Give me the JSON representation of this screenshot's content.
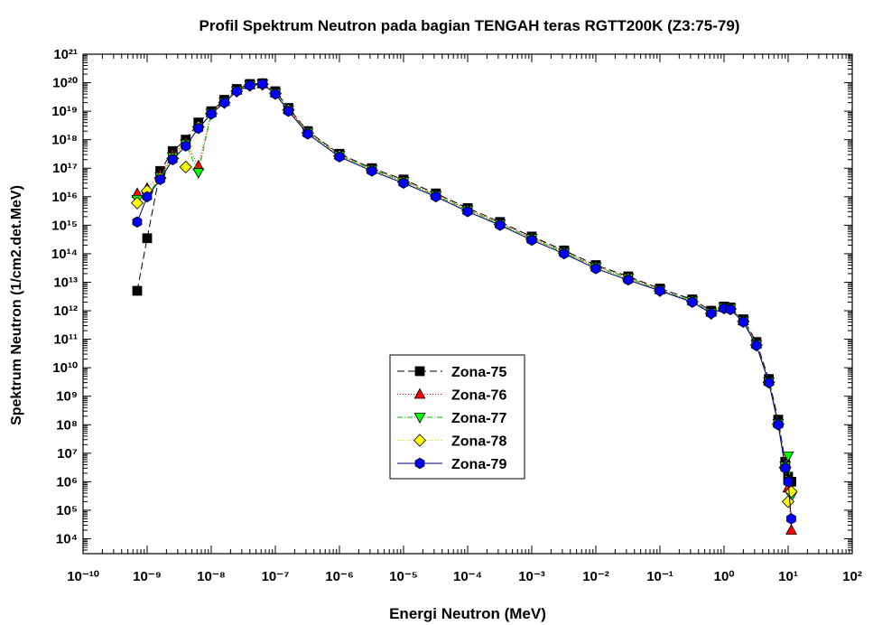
{
  "chart_data": {
    "type": "scatter-line",
    "title": "Profil Spektrum Neutron pada bagian TENGAH teras RGTT200K (Z3:75-79)",
    "x_label": "Energi Neutron (MeV)",
    "y_label": "Spektrum Neutron (1/cm2.det.MeV)",
    "xscale": "log",
    "yscale": "log",
    "xlim": [
      1e-10,
      100
    ],
    "ylim": [
      3000,
      1e+21
    ],
    "xticks": [
      {
        "value": 1e-10,
        "label": "10⁻¹⁰"
      },
      {
        "value": 1e-09,
        "label": "10⁻⁹"
      },
      {
        "value": 1e-08,
        "label": "10⁻⁸"
      },
      {
        "value": 1e-07,
        "label": "10⁻⁷"
      },
      {
        "value": 1e-06,
        "label": "10⁻⁶"
      },
      {
        "value": 1e-05,
        "label": "10⁻⁵"
      },
      {
        "value": 0.0001,
        "label": "10⁻⁴"
      },
      {
        "value": 0.001,
        "label": "10⁻³"
      },
      {
        "value": 0.01,
        "label": "10⁻²"
      },
      {
        "value": 0.1,
        "label": "10⁻¹"
      },
      {
        "value": 1,
        "label": "10⁰"
      },
      {
        "value": 10,
        "label": "10¹"
      },
      {
        "value": 100,
        "label": "10²"
      }
    ],
    "yticks": [
      {
        "value": 10000.0,
        "label": "10⁴"
      },
      {
        "value": 100000.0,
        "label": "10⁵"
      },
      {
        "value": 1000000.0,
        "label": "10⁶"
      },
      {
        "value": 10000000.0,
        "label": "10⁷"
      },
      {
        "value": 100000000.0,
        "label": "10⁸"
      },
      {
        "value": 1000000000.0,
        "label": "10⁹"
      },
      {
        "value": 10000000000.0,
        "label": "10¹⁰"
      },
      {
        "value": 100000000000.0,
        "label": "10¹¹"
      },
      {
        "value": 1000000000000.0,
        "label": "10¹²"
      },
      {
        "value": 10000000000000.0,
        "label": "10¹³"
      },
      {
        "value": 100000000000000.0,
        "label": "10¹⁴"
      },
      {
        "value": 1000000000000000.0,
        "label": "10¹⁵"
      },
      {
        "value": 1e+16,
        "label": "10¹⁶"
      },
      {
        "value": 1e+17,
        "label": "10¹⁷"
      },
      {
        "value": 1e+18,
        "label": "10¹⁸"
      },
      {
        "value": 1e+19,
        "label": "10¹⁹"
      },
      {
        "value": 1e+20,
        "label": "10²⁰"
      },
      {
        "value": 1e+21,
        "label": "10²¹"
      }
    ],
    "legend": "center",
    "x": [
      7e-10,
      1e-09,
      1.6e-09,
      2.5e-09,
      4e-09,
      6.3e-09,
      1e-08,
      1.6e-08,
      2.5e-08,
      4e-08,
      6.3e-08,
      1e-07,
      1.6e-07,
      3.2e-07,
      1e-06,
      3.2e-06,
      1e-05,
      3.2e-05,
      0.0001,
      0.00032,
      0.001,
      0.0032,
      0.01,
      0.032,
      0.1,
      0.32,
      0.63,
      1,
      1.26,
      2,
      3.2,
      5,
      7,
      9,
      10,
      11.2
    ],
    "series": [
      {
        "name": "Zona-75",
        "color": "#000000",
        "line_color": "#000000",
        "dash": "8,4",
        "marker": "square",
        "values": [
          5000000000000.0,
          350000000000000.0,
          8e+16,
          4e+17,
          1e+18,
          4e+18,
          1e+19,
          2.5e+19,
          6e+19,
          9e+19,
          9.5e+19,
          5e+19,
          1.3e+19,
          2e+18,
          3.2e+17,
          1e+17,
          4e+16,
          1.3e+16,
          4000000000000000.0,
          1300000000000000.0,
          400000000000000.0,
          130000000000000.0,
          40000000000000.0,
          16000000000000.0,
          6000000000000.0,
          2500000000000.0,
          1000000000000.0,
          1400000000000.0,
          1300000000000.0,
          500000000000.0,
          80000000000.0,
          4000000000.0,
          150000000.0,
          5000000.0,
          1500000.0,
          1000000.0
        ]
      },
      {
        "name": "Zona-76",
        "color": "#ff0000",
        "line_color": "#ff0000",
        "dash": "1,2",
        "marker": "triangle-up",
        "values": [
          1.3e+16,
          2e+16,
          6e+16,
          3e+17,
          8e+17,
          1.2e+17,
          9e+18,
          2.2e+19,
          5.5e+19,
          8.5e+19,
          9.2e+19,
          4.5e+19,
          1.2e+19,
          1.9e+18,
          3e+17,
          9.5e+16,
          3.6e+16,
          1.2e+16,
          3600000000000000.0,
          1200000000000000.0,
          360000000000000.0,
          120000000000000.0,
          36000000000000.0,
          15000000000000.0,
          5500000000000.0,
          2300000000000.0,
          900000000000.0,
          1300000000000.0,
          1200000000000.0,
          450000000000.0,
          70000000000.0,
          3500000000.0,
          120000000.0,
          4000000.0,
          600000.0,
          20000.0
        ]
      },
      {
        "name": "Zona-77",
        "color": "#00ff00",
        "line_color": "#00c000",
        "dash": "6,2,1,2",
        "marker": "triangle-down",
        "values": [
          8000000000000000.0,
          1e+16,
          5e+16,
          2.5e+17,
          7e+17,
          7e+16,
          8.5e+18,
          2.1e+19,
          5.2e+19,
          8.2e+19,
          9e+19,
          4.3e+19,
          1.1e+19,
          1.8e+18,
          2.8e+17,
          9e+16,
          3.4e+16,
          1.1e+16,
          3400000000000000.0,
          1100000000000000.0,
          340000000000000.0,
          110000000000000.0,
          34000000000000.0,
          14000000000000.0,
          5200000000000.0,
          2200000000000.0,
          850000000000.0,
          1300000000000.0,
          1200000000000.0,
          430000000000.0,
          65000000000.0,
          3200000000.0,
          110000000.0,
          3500000.0,
          8000000.0,
          300000.0
        ]
      },
      {
        "name": "Zona-78",
        "color": "#ffff00",
        "line_color": "#d8d800",
        "dash": "1,2",
        "marker": "diamond",
        "values": [
          6000000000000000.0,
          1.6e+16,
          4.5e+16,
          2.2e+17,
          1.1e+17,
          2.8e+18,
          8.2e+18,
          2e+19,
          5e+19,
          8e+19,
          8.8e+19,
          4.2e+19,
          1.1e+19,
          1.7e+18,
          2.7e+17,
          8.5e+16,
          3.2e+16,
          1.05e+16,
          3200000000000000.0,
          1050000000000000.0,
          320000000000000.0,
          105000000000000.0,
          32000000000000.0,
          13000000000000.0,
          5000000000000.0,
          2100000000000.0,
          800000000000.0,
          1250000000000.0,
          1150000000000.0,
          420000000000.0,
          62000000000.0,
          3100000000.0,
          105000000.0,
          3200000.0,
          200000.0,
          450000.0
        ]
      },
      {
        "name": "Zona-79",
        "color": "#0000ff",
        "line_color": "#000080",
        "dash": "",
        "marker": "hexagon",
        "values": [
          1300000000000000.0,
          1e+16,
          4e+16,
          2e+17,
          6e+17,
          2.5e+18,
          8e+18,
          2e+19,
          5e+19,
          8e+19,
          9e+19,
          4e+19,
          1e+19,
          1.6e+18,
          2.5e+17,
          8e+16,
          3e+16,
          1e+16,
          3000000000000000.0,
          1000000000000000.0,
          300000000000000.0,
          100000000000000.0,
          30000000000000.0,
          12000000000000.0,
          5000000000000.0,
          2000000000000.0,
          800000000000.0,
          1200000000000.0,
          1100000000000.0,
          400000000000.0,
          60000000000.0,
          3000000000.0,
          100000000.0,
          3000000.0,
          1000000.0,
          50000.0
        ]
      }
    ]
  }
}
